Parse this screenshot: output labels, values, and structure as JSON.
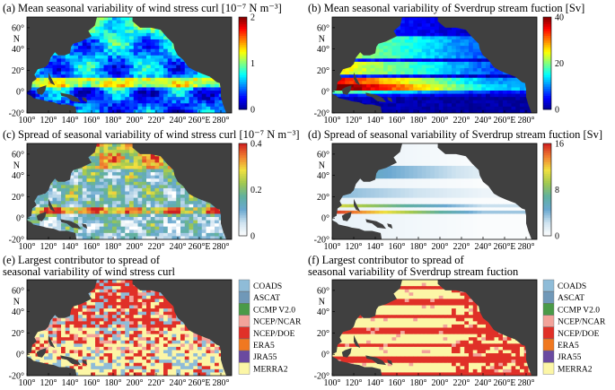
{
  "chart_data": [
    {
      "type": "heatmap",
      "title": "(a) Mean seasonal variability of wind stress curl [10⁻⁷ N m⁻³]",
      "lon_ticks": [
        "100°",
        "120°",
        "140°",
        "160°",
        "180°",
        "200°",
        "220°",
        "240°",
        "260°E",
        "280°"
      ],
      "lat_ticks": [
        "60°",
        "40°",
        "20°",
        "0°",
        "-20°"
      ],
      "lat_unit": "N",
      "colorbar_ticks": [
        "2",
        "1",
        "0"
      ],
      "colorbar_range": [
        0,
        2
      ],
      "colormap": "jet"
    },
    {
      "type": "heatmap",
      "title": "(b) Mean seasonal variability of Sverdrup stream fuction [Sv]",
      "lon_ticks": [
        "100°",
        "120°",
        "140°",
        "160°",
        "180°",
        "200°",
        "220°",
        "240°",
        "260°E",
        "280°"
      ],
      "lat_ticks": [
        "60°",
        "40°",
        "20°",
        "0°",
        "-20°"
      ],
      "lat_unit": "N",
      "colorbar_ticks": [
        "40",
        "20",
        "0"
      ],
      "colorbar_range": [
        0,
        40
      ],
      "colormap": "jet"
    },
    {
      "type": "heatmap",
      "title": "(c) Spread of seasonal variability of wind stress curl [10⁻⁷ N m⁻³]",
      "lon_ticks": [
        "100°",
        "120°",
        "140°",
        "160°",
        "180°",
        "200°",
        "220°",
        "240°",
        "260°E",
        "280°"
      ],
      "lat_ticks": [
        "60°",
        "40°",
        "20°",
        "0°",
        "-20°"
      ],
      "lat_unit": "N",
      "colorbar_ticks": [
        "0.4",
        "0.2",
        "0"
      ],
      "colorbar_range": [
        0,
        0.4
      ],
      "colormap": "white-blue-green-yellow-red"
    },
    {
      "type": "heatmap",
      "title": "(d) Spread of seasonal variability of Sverdrup stream fuction [Sv]",
      "lon_ticks": [
        "100°",
        "120°",
        "140°",
        "160°",
        "180°",
        "200°",
        "220°",
        "240°",
        "260°E",
        "280°"
      ],
      "lat_ticks": [
        "60°",
        "40°",
        "20°",
        "0°",
        "-20°"
      ],
      "lat_unit": "N",
      "colorbar_ticks": [
        "16",
        "8",
        "0"
      ],
      "colorbar_range": [
        0,
        16
      ],
      "colormap": "white-blue-green-yellow-red"
    },
    {
      "type": "heatmap",
      "title": "(e) Largest contributor to spread of",
      "title_line2": "seasonal variability of wind stress curl",
      "lon_ticks": [
        "100°",
        "120°",
        "140°",
        "160°",
        "180°",
        "200°",
        "220°",
        "240°",
        "260°E",
        "280°"
      ],
      "lat_ticks": [
        "60°",
        "40°",
        "20°",
        "0°",
        "-20°"
      ],
      "lat_unit": "N",
      "legend": [
        {
          "label": "COADS",
          "color": "#8fbcd8"
        },
        {
          "label": "ASCAT",
          "color": "#7098b8"
        },
        {
          "label": "CCMP V2.0",
          "color": "#4a9a48"
        },
        {
          "label": "NCEP/NCAR",
          "color": "#f2a39a"
        },
        {
          "label": "NCEP/DOE",
          "color": "#e03028"
        },
        {
          "label": "ERA5",
          "color": "#f07820"
        },
        {
          "label": "JRA55",
          "color": "#6a4aa0"
        },
        {
          "label": "MERRA2",
          "color": "#fcf6a6"
        }
      ]
    },
    {
      "type": "heatmap",
      "title": "(f) Largest contributor to spread of",
      "title_line2": "seasonal variability of Sverdrup stream fuction",
      "lon_ticks": [
        "100°",
        "120°",
        "140°",
        "160°",
        "180°",
        "200°",
        "220°",
        "240°",
        "260°E",
        "280°"
      ],
      "lat_ticks": [
        "60°",
        "40°",
        "20°",
        "0°",
        "-20°"
      ],
      "lat_unit": "N",
      "legend": [
        {
          "label": "COADS",
          "color": "#8fbcd8"
        },
        {
          "label": "ASCAT",
          "color": "#7098b8"
        },
        {
          "label": "CCMP V2.0",
          "color": "#4a9a48"
        },
        {
          "label": "NCEP/NCAR",
          "color": "#f2a39a"
        },
        {
          "label": "NCEP/DOE",
          "color": "#e03028"
        },
        {
          "label": "ERA5",
          "color": "#f07820"
        },
        {
          "label": "JRA55",
          "color": "#6a4aa0"
        },
        {
          "label": "MERRA2",
          "color": "#fcf6a6"
        }
      ]
    }
  ],
  "colors": {
    "land": "#404040",
    "jet": [
      "#00008f",
      "#0000ff",
      "#0080ff",
      "#00ffff",
      "#80ff80",
      "#ffff00",
      "#ff8000",
      "#ff0000",
      "#800000"
    ],
    "spread": [
      "#ffffff",
      "#cfe3f0",
      "#6aa8d0",
      "#60b0a0",
      "#a0c850",
      "#f0e040",
      "#f08030",
      "#d02020"
    ]
  }
}
